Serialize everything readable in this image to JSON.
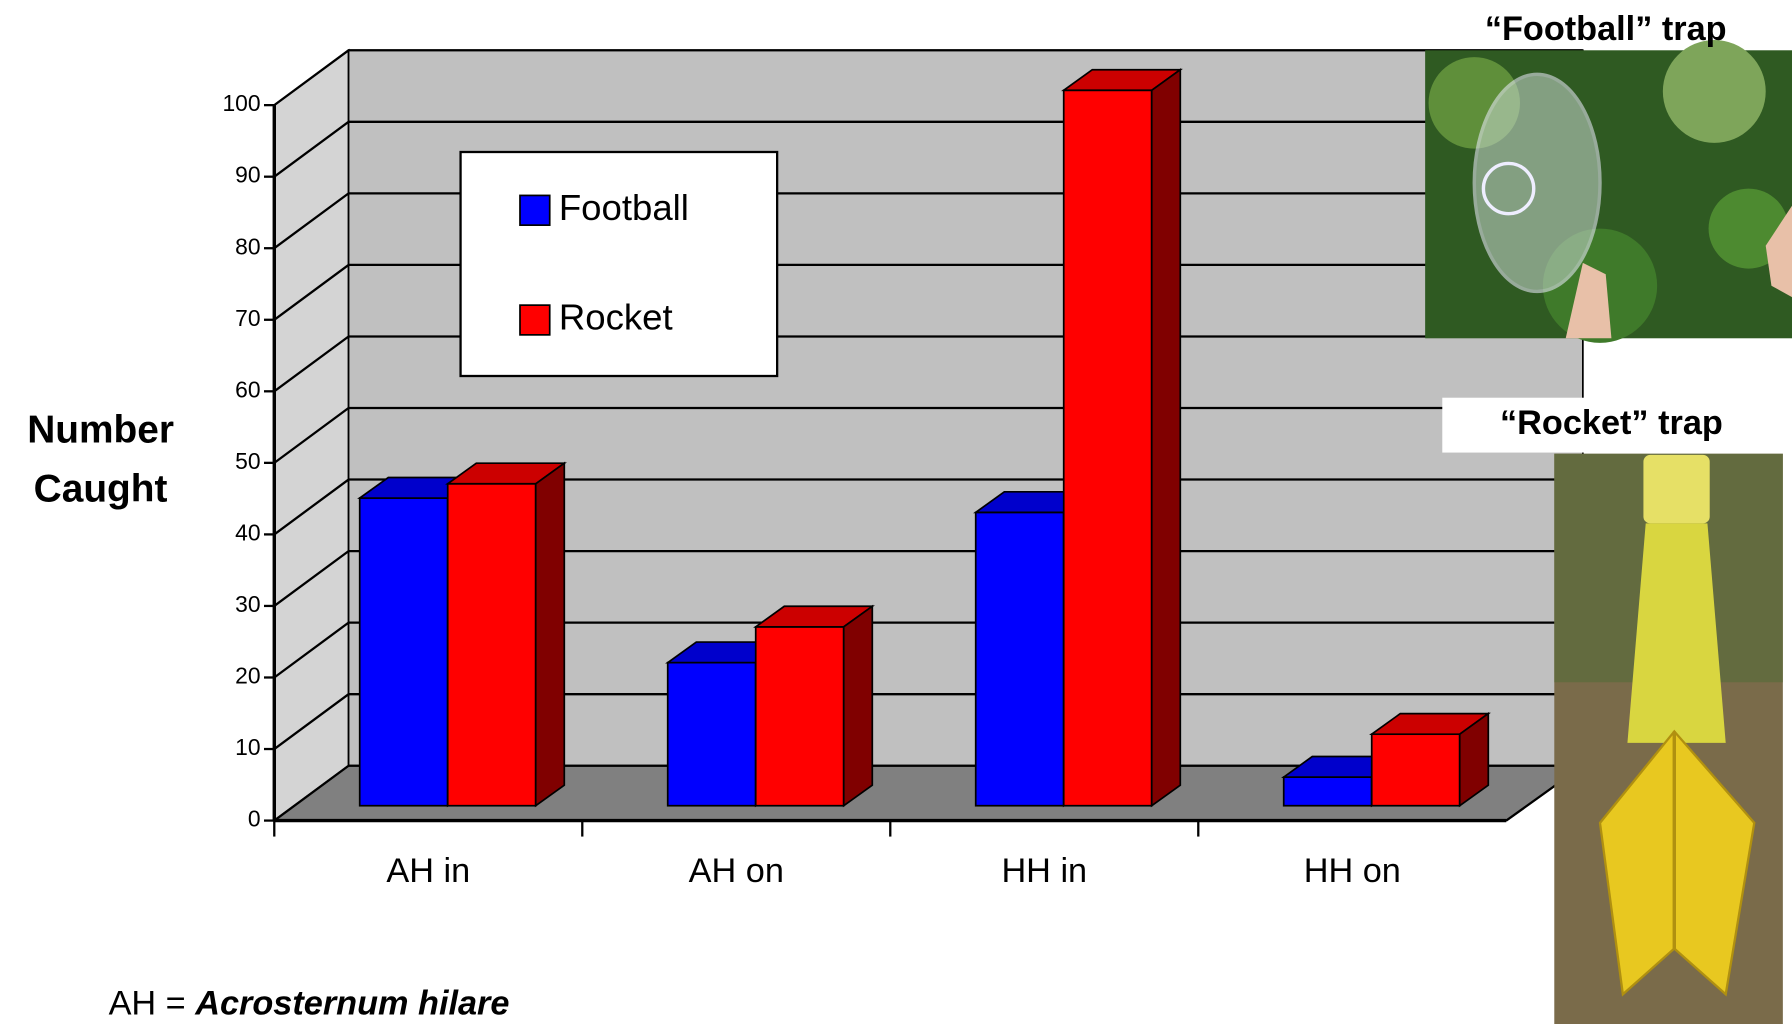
{
  "chart_data": {
    "type": "bar3d",
    "ylabel": [
      "Number",
      "Caught"
    ],
    "categories": [
      "AH in",
      "AH on",
      "HH in",
      "HH on"
    ],
    "series": [
      {
        "name": "Football",
        "color": "#0000ff",
        "values": [
          43,
          20,
          41,
          4
        ]
      },
      {
        "name": "Rocket",
        "color": "#ff0000",
        "values": [
          45,
          25,
          100,
          10
        ]
      }
    ],
    "ylim": [
      0,
      100
    ],
    "yticks": [
      0,
      10,
      20,
      30,
      40,
      50,
      60,
      70,
      80,
      90,
      100
    ],
    "grid": true,
    "legend": "upper left",
    "photo_captions": [
      "“Football” trap",
      "“Rocket” trap"
    ],
    "footnote": {
      "prefix": "AH =",
      "term": "Acrosternum hilare"
    }
  }
}
